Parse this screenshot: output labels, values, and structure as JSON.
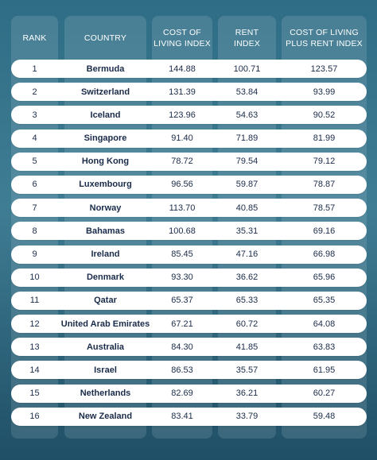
{
  "headers": {
    "rank": "RANK",
    "country": "COUNTRY",
    "cost_of_living": "COST OF\nLIVING INDEX",
    "rent": "RENT\nINDEX",
    "cost_plus_rent": "COST OF LIVING\nPLUS RENT INDEX"
  },
  "rows": [
    {
      "rank": "1",
      "country": "Bermuda",
      "col": "144.88",
      "rent": "100.71",
      "colr": "123.57"
    },
    {
      "rank": "2",
      "country": "Switzerland",
      "col": "131.39",
      "rent": "53.84",
      "colr": "93.99"
    },
    {
      "rank": "3",
      "country": "Iceland",
      "col": "123.96",
      "rent": "54.63",
      "colr": "90.52"
    },
    {
      "rank": "4",
      "country": "Singapore",
      "col": "91.40",
      "rent": "71.89",
      "colr": "81.99"
    },
    {
      "rank": "5",
      "country": "Hong Kong",
      "col": "78.72",
      "rent": "79.54",
      "colr": "79.12"
    },
    {
      "rank": "6",
      "country": "Luxembourg",
      "col": "96.56",
      "rent": "59.87",
      "colr": "78.87"
    },
    {
      "rank": "7",
      "country": "Norway",
      "col": "113.70",
      "rent": "40.85",
      "colr": "78.57"
    },
    {
      "rank": "8",
      "country": "Bahamas",
      "col": "100.68",
      "rent": "35.31",
      "colr": "69.16"
    },
    {
      "rank": "9",
      "country": "Ireland",
      "col": "85.45",
      "rent": "47.16",
      "colr": "66.98"
    },
    {
      "rank": "10",
      "country": "Denmark",
      "col": "93.30",
      "rent": "36.62",
      "colr": "65.96"
    },
    {
      "rank": "11",
      "country": "Qatar",
      "col": "65.37",
      "rent": "65.33",
      "colr": "65.35"
    },
    {
      "rank": "12",
      "country": "United Arab Emirates",
      "col": "67.21",
      "rent": "60.72",
      "colr": "64.08"
    },
    {
      "rank": "13",
      "country": "Australia",
      "col": "84.30",
      "rent": "41.85",
      "colr": "63.83"
    },
    {
      "rank": "14",
      "country": "Israel",
      "col": "86.53",
      "rent": "35.57",
      "colr": "61.95"
    },
    {
      "rank": "15",
      "country": "Netherlands",
      "col": "82.69",
      "rent": "36.21",
      "colr": "60.27"
    },
    {
      "rank": "16",
      "country": "New Zealand",
      "col": "83.41",
      "rent": "33.79",
      "colr": "59.48"
    }
  ],
  "colors": {
    "text_dark": "#1a2b4a",
    "header_text": "#ffffff",
    "row_bg": "#ffffff"
  }
}
